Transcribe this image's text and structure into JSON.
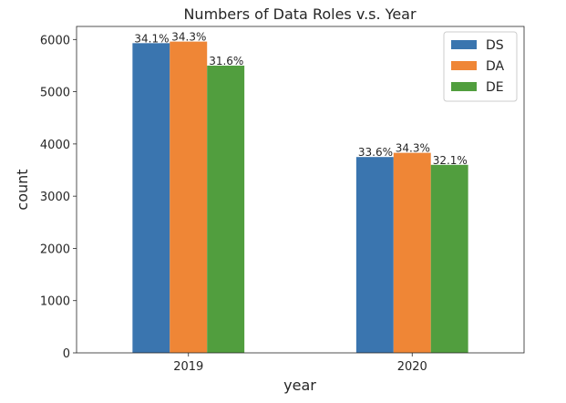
{
  "chart_data": {
    "type": "bar",
    "title": "Numbers of Data Roles v.s. Year",
    "xlabel": "year",
    "ylabel": "count",
    "categories": [
      "2019",
      "2020"
    ],
    "ylim": [
      0,
      6250
    ],
    "yticks": [
      "0",
      "1000",
      "2000",
      "3000",
      "4000",
      "5000",
      "6000"
    ],
    "grid": false,
    "legend_position": "top-right",
    "series": [
      {
        "name": "DS",
        "color": "#3a75af",
        "values": [
          5930,
          3750
        ],
        "labels": [
          "34.1%",
          "33.6%"
        ]
      },
      {
        "name": "DA",
        "color": "#ef8636",
        "values": [
          5960,
          3830
        ],
        "labels": [
          "34.3%",
          "34.3%"
        ]
      },
      {
        "name": "DE",
        "color": "#519e3e",
        "values": [
          5500,
          3600
        ],
        "labels": [
          "31.6%",
          "32.1%"
        ]
      }
    ]
  }
}
